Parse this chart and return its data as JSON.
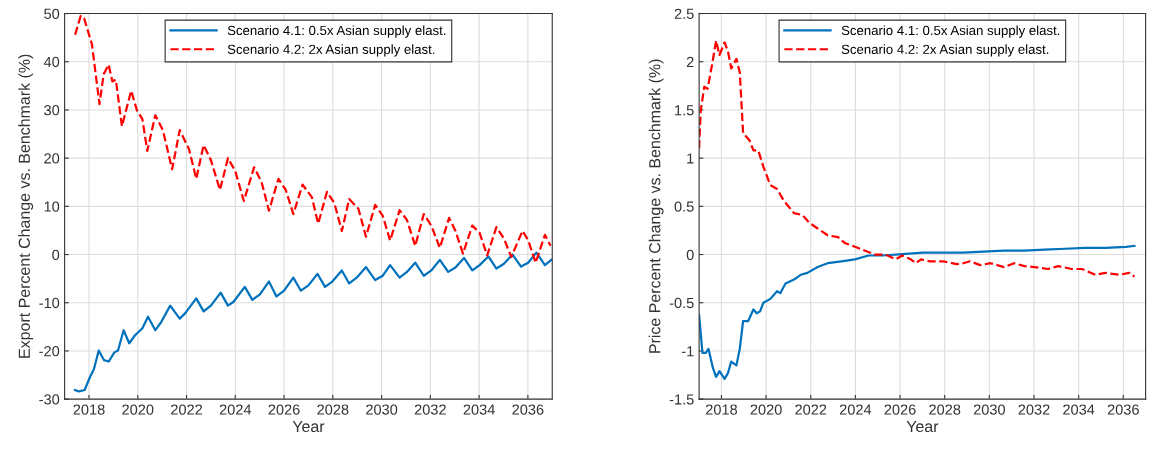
{
  "chart_data": [
    {
      "type": "line",
      "xlabel": "Year",
      "ylabel": "Export Percent Change vs. Benchmark (%)",
      "xlim": [
        2017,
        2037
      ],
      "xticks": [
        2018,
        2020,
        2022,
        2024,
        2026,
        2028,
        2030,
        2032,
        2034,
        2036
      ],
      "ylim": [
        -30,
        50
      ],
      "yticks": [
        -30,
        -20,
        -10,
        0,
        10,
        20,
        30,
        40,
        50
      ],
      "grid": true,
      "legend": "top",
      "series": [
        {
          "name": "Scenario 4.1: 0.5x Asian supply elast.",
          "color": "#0072bd",
          "line_style": "solid",
          "x": [
            2017.43,
            2017.59,
            2017.82,
            2018.05,
            2018.2,
            2018.4,
            2018.61,
            2018.81,
            2019.04,
            2019.19,
            2019.42,
            2019.65,
            2019.88,
            2020.19,
            2020.42,
            2020.72,
            2020.95,
            2021.33,
            2021.72,
            2021.94,
            2022.4,
            2022.7,
            2023.0,
            2023.4,
            2023.7,
            2023.93,
            2024.39,
            2024.7,
            2025.0,
            2025.38,
            2025.69,
            2026.0,
            2026.38,
            2026.69,
            2027.0,
            2027.37,
            2027.68,
            2027.98,
            2028.37,
            2028.67,
            2028.98,
            2029.36,
            2029.74,
            2030.05,
            2030.35,
            2030.74,
            2031.04,
            2031.38,
            2031.73,
            2032.04,
            2032.39,
            2032.73,
            2033.03,
            2033.38,
            2033.72,
            2034.02,
            2034.38,
            2034.71,
            2035.02,
            2035.37,
            2035.72,
            2036.01,
            2036.35,
            2036.7,
            2036.96
          ],
          "values": [
            -28.1,
            -28.4,
            -28.1,
            -25.3,
            -23.8,
            -19.9,
            -21.9,
            -22.2,
            -20.3,
            -19.9,
            -15.7,
            -18.4,
            -16.8,
            -15.3,
            -12.9,
            -15.7,
            -14.1,
            -10.6,
            -13.3,
            -12.2,
            -9.1,
            -11.8,
            -10.6,
            -7.9,
            -10.6,
            -9.8,
            -6.7,
            -9.4,
            -8.3,
            -5.6,
            -8.7,
            -7.5,
            -4.8,
            -7.5,
            -6.4,
            -4.0,
            -6.7,
            -5.6,
            -3.3,
            -6.0,
            -4.8,
            -2.6,
            -5.3,
            -4.4,
            -2.2,
            -4.8,
            -3.6,
            -1.7,
            -4.4,
            -3.3,
            -1.1,
            -3.6,
            -2.7,
            -0.7,
            -3.3,
            -2.2,
            -0.4,
            -2.9,
            -1.9,
            0.0,
            -2.5,
            -1.7,
            0.4,
            -2.2,
            -1.1
          ]
        },
        {
          "name": "Scenario 4.2: 2x Asian supply elast.",
          "color": "#ff0000",
          "line_style": "dashed",
          "x": [
            2017.43,
            2017.66,
            2017.8,
            2018.12,
            2018.43,
            2018.6,
            2018.8,
            2018.96,
            2019.1,
            2019.35,
            2019.73,
            2019.96,
            2020.19,
            2020.39,
            2020.72,
            2021.03,
            2021.41,
            2021.72,
            2022.1,
            2022.4,
            2022.7,
            2023.0,
            2023.37,
            2023.7,
            2024.0,
            2024.35,
            2024.77,
            2025.08,
            2025.38,
            2025.77,
            2026.07,
            2026.38,
            2026.76,
            2027.14,
            2027.4,
            2027.76,
            2028.06,
            2028.37,
            2028.67,
            2029.05,
            2029.36,
            2029.74,
            2030.05,
            2030.35,
            2030.74,
            2031.04,
            2031.38,
            2031.73,
            2032.04,
            2032.39,
            2032.77,
            2033.03,
            2033.34,
            2033.72,
            2034.02,
            2034.33,
            2034.71,
            2035.02,
            2035.32,
            2035.78,
            2036.01,
            2036.32,
            2036.7,
            2036.93
          ],
          "values": [
            45.6,
            49.5,
            49.0,
            43.6,
            31.2,
            37.4,
            39.4,
            35.9,
            36.3,
            26.6,
            34.0,
            30.0,
            28.1,
            21.5,
            28.9,
            25.8,
            17.7,
            25.8,
            21.9,
            15.7,
            22.7,
            19.6,
            13.4,
            20.0,
            17.3,
            11.1,
            18.1,
            15.0,
            9.1,
            15.7,
            13.4,
            8.4,
            14.5,
            11.9,
            6.4,
            13.0,
            10.7,
            4.9,
            11.5,
            9.5,
            3.7,
            10.3,
            8.0,
            2.9,
            9.2,
            7.2,
            1.8,
            8.4,
            6.0,
            1.4,
            7.6,
            4.9,
            0.2,
            6.0,
            4.5,
            -0.2,
            5.7,
            3.3,
            -0.5,
            4.9,
            3.0,
            -1.7,
            4.1,
            1.8
          ]
        }
      ]
    },
    {
      "type": "line",
      "xlabel": "Year",
      "ylabel": "Price Percent Change vs. Benchmark (%)",
      "xlim": [
        2017,
        2037
      ],
      "xticks": [
        2018,
        2020,
        2022,
        2024,
        2026,
        2028,
        2030,
        2032,
        2034,
        2036
      ],
      "ylim": [
        -1.5,
        2.5
      ],
      "yticks": [
        -1.5,
        -1,
        -0.5,
        0,
        0.5,
        1,
        1.5,
        2,
        2.5
      ],
      "grid": true,
      "legend": "top",
      "series": [
        {
          "name": "Scenario 4.1: 0.5x Asian supply elast.",
          "color": "#0072bd",
          "line_style": "solid",
          "x": [
            2017.0,
            2017.15,
            2017.3,
            2017.42,
            2017.61,
            2017.76,
            2017.91,
            2018.14,
            2018.29,
            2018.44,
            2018.67,
            2018.82,
            2018.97,
            2019.2,
            2019.43,
            2019.58,
            2019.73,
            2019.88,
            2020.19,
            2020.49,
            2020.64,
            2020.87,
            2021.25,
            2021.55,
            2021.85,
            2022.31,
            2022.76,
            2023.37,
            2023.98,
            2024.59,
            2025.19,
            2025.8,
            2026.41,
            2027.01,
            2027.92,
            2028.83,
            2029.74,
            2030.66,
            2031.57,
            2032.48,
            2033.39,
            2034.3,
            2035.21,
            2036.12,
            2036.5
          ],
          "values": [
            -0.63,
            -1.02,
            -1.02,
            -0.98,
            -1.17,
            -1.27,
            -1.21,
            -1.29,
            -1.23,
            -1.11,
            -1.15,
            -0.98,
            -0.69,
            -0.69,
            -0.57,
            -0.61,
            -0.59,
            -0.5,
            -0.46,
            -0.38,
            -0.4,
            -0.3,
            -0.26,
            -0.21,
            -0.19,
            -0.13,
            -0.09,
            -0.07,
            -0.05,
            -0.01,
            -0.01,
            0.0,
            0.01,
            0.02,
            0.02,
            0.02,
            0.03,
            0.04,
            0.04,
            0.05,
            0.06,
            0.07,
            0.07,
            0.08,
            0.09
          ]
        },
        {
          "name": "Scenario 4.2: 2x Asian supply elast.",
          "color": "#ff0000",
          "line_style": "dashed",
          "x": [
            2017.0,
            2017.07,
            2017.23,
            2017.38,
            2017.58,
            2017.76,
            2017.91,
            2018.14,
            2018.29,
            2018.44,
            2018.67,
            2018.82,
            2018.97,
            2019.27,
            2019.43,
            2019.65,
            2019.88,
            2020.19,
            2020.49,
            2020.79,
            2021.25,
            2021.63,
            2021.93,
            2022.31,
            2022.76,
            2023.22,
            2023.52,
            2023.98,
            2024.43,
            2024.89,
            2025.34,
            2025.8,
            2026.1,
            2026.48,
            2026.71,
            2026.94,
            2027.32,
            2027.92,
            2028.53,
            2028.83,
            2029.14,
            2029.59,
            2030.05,
            2030.66,
            2031.11,
            2031.57,
            2032.02,
            2032.63,
            2033.08,
            2033.69,
            2034.15,
            2034.75,
            2035.21,
            2035.81,
            2036.27,
            2036.5
          ],
          "values": [
            1.1,
            1.49,
            1.74,
            1.72,
            1.97,
            2.22,
            2.07,
            2.2,
            2.11,
            1.93,
            2.03,
            1.89,
            1.26,
            1.18,
            1.08,
            1.08,
            0.91,
            0.72,
            0.68,
            0.56,
            0.43,
            0.41,
            0.33,
            0.27,
            0.2,
            0.18,
            0.12,
            0.08,
            0.04,
            0.0,
            0.0,
            -0.05,
            -0.01,
            -0.05,
            -0.09,
            -0.05,
            -0.07,
            -0.07,
            -0.1,
            -0.09,
            -0.07,
            -0.11,
            -0.09,
            -0.13,
            -0.09,
            -0.12,
            -0.13,
            -0.15,
            -0.12,
            -0.15,
            -0.15,
            -0.21,
            -0.19,
            -0.21,
            -0.19,
            -0.23
          ]
        }
      ]
    }
  ]
}
